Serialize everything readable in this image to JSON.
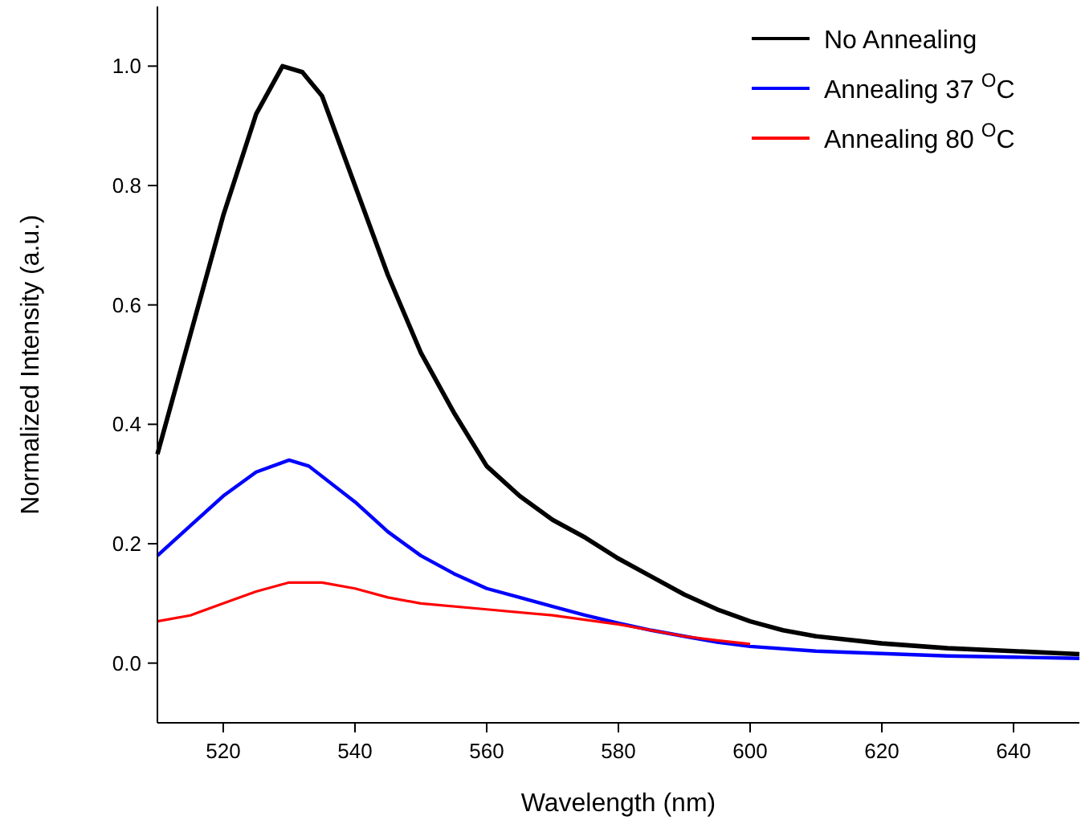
{
  "chart_data": {
    "type": "line",
    "xlabel": "Wavelength (nm)",
    "ylabel": "Normalized Intensity (a.u.)",
    "xlim": [
      510,
      650
    ],
    "xticks": [
      520,
      540,
      560,
      580,
      600,
      620,
      640
    ],
    "ylim": [
      -0.1,
      1.1
    ],
    "yticks": [
      {
        "value": 0,
        "label": "0.0"
      },
      0.2,
      0.4,
      0.6,
      0.8,
      {
        "value": 1,
        "label": "1.0"
      }
    ],
    "legend": "top right",
    "grid": false,
    "marker": "none",
    "line_style": "solid",
    "series": [
      {
        "name": "No Annealing",
        "color": "#000000",
        "x": [
          510,
          515,
          520,
          525,
          529,
          532,
          535,
          540,
          545,
          550,
          555,
          560,
          565,
          570,
          575,
          580,
          585,
          590,
          595,
          600,
          605,
          610,
          620,
          630,
          640,
          650
        ],
        "values": [
          0.35,
          0.55,
          0.75,
          0.92,
          1.0,
          0.99,
          0.95,
          0.8,
          0.65,
          0.52,
          0.42,
          0.33,
          0.28,
          0.24,
          0.21,
          0.175,
          0.145,
          0.115,
          0.09,
          0.07,
          0.055,
          0.045,
          0.033,
          0.025,
          0.02,
          0.015
        ]
      },
      {
        "name": "Annealing 37 $^{O}$C",
        "color": "#0000ff",
        "x": [
          510,
          515,
          520,
          525,
          530,
          533,
          540,
          545,
          550,
          555,
          560,
          565,
          570,
          575,
          580,
          585,
          590,
          595,
          600,
          610,
          620,
          630,
          640,
          650
        ],
        "values": [
          0.18,
          0.23,
          0.28,
          0.32,
          0.34,
          0.33,
          0.27,
          0.22,
          0.18,
          0.15,
          0.125,
          0.11,
          0.095,
          0.08,
          0.067,
          0.055,
          0.045,
          0.035,
          0.028,
          0.02,
          0.016,
          0.012,
          0.01,
          0.008
        ]
      },
      {
        "name": "Annealing 80 $^{O}$C",
        "color": "#ff0000",
        "x": [
          510,
          515,
          520,
          525,
          530,
          535,
          540,
          545,
          550,
          560,
          570,
          580,
          590,
          595,
          600
        ],
        "values": [
          0.07,
          0.08,
          0.1,
          0.12,
          0.135,
          0.135,
          0.125,
          0.11,
          0.1,
          0.09,
          0.08,
          0.065,
          0.045,
          0.038,
          0.032
        ]
      }
    ]
  }
}
